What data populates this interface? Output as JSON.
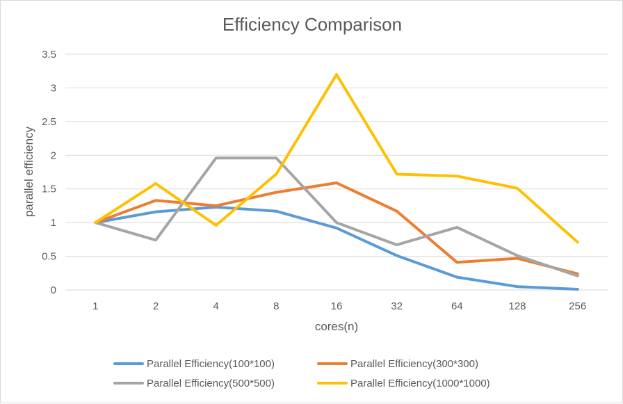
{
  "chart_data": {
    "type": "line",
    "title": "Efficiency Comparison",
    "xlabel": "cores(n)",
    "ylabel": "parallel efficiency",
    "categories": [
      "1",
      "2",
      "4",
      "8",
      "16",
      "32",
      "64",
      "128",
      "256"
    ],
    "ylim": [
      0,
      3.5
    ],
    "yticks": [
      0,
      0.5,
      1,
      1.5,
      2,
      2.5,
      3,
      3.5
    ],
    "ytick_labels": [
      "0",
      "0.5",
      "1",
      "1.5",
      "2",
      "2.5",
      "3",
      "3.5"
    ],
    "grid": true,
    "legend_position": "bottom",
    "series": [
      {
        "name": "Parallel Efficiency(100*100)",
        "color": "#5b9bd5",
        "values": [
          1.0,
          1.16,
          1.23,
          1.17,
          0.92,
          0.51,
          0.19,
          0.05,
          0.01
        ]
      },
      {
        "name": "Parallel Efficiency(300*300)",
        "color": "#ed7d31",
        "values": [
          1.0,
          1.33,
          1.25,
          1.45,
          1.59,
          1.17,
          0.41,
          0.47,
          0.24
        ]
      },
      {
        "name": "Parallel Efficiency(500*500)",
        "color": "#a5a5a5",
        "values": [
          1.0,
          0.74,
          1.96,
          1.96,
          1.0,
          0.67,
          0.93,
          0.51,
          0.21
        ]
      },
      {
        "name": "Parallel Efficiency(1000*1000)",
        "color": "#ffc000",
        "values": [
          1.0,
          1.58,
          0.96,
          1.72,
          3.2,
          1.72,
          1.69,
          1.51,
          0.71
        ]
      }
    ]
  }
}
